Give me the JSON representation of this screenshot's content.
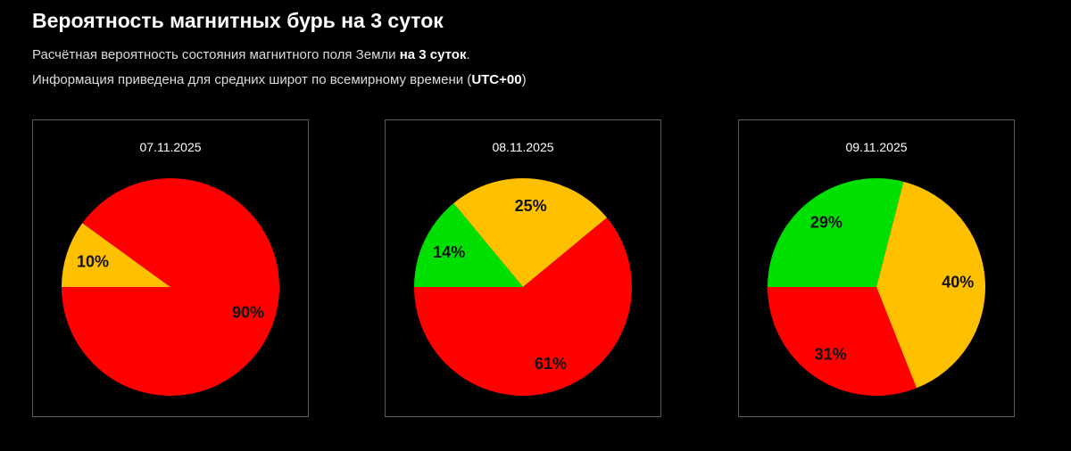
{
  "header": {
    "title": "Вероятность магнитных бурь на 3 суток",
    "line1_text": "Расчётная вероятность состояния магнитного поля Земли ",
    "line1_bold": "на 3 суток",
    "line1_end": ".",
    "line2_text": "Информация приведена для средних широт по всемирному времени (",
    "line2_bold": "UTC+00",
    "line2_end": ")"
  },
  "colors": {
    "background": "#000000",
    "storm": "#ff0000",
    "unsettled": "#ffc000",
    "quiet": "#00e000"
  },
  "chart_data": [
    {
      "type": "pie",
      "title": "07.11.2025",
      "slices": [
        {
          "label": "10%",
          "value": 10,
          "color": "#ffc000"
        },
        {
          "label": "90%",
          "value": 90,
          "color": "#ff0000"
        }
      ],
      "start_angle_deg": 180
    },
    {
      "type": "pie",
      "title": "08.11.2025",
      "slices": [
        {
          "label": "14%",
          "value": 14,
          "color": "#00e000"
        },
        {
          "label": "25%",
          "value": 25,
          "color": "#ffc000"
        },
        {
          "label": "61%",
          "value": 61,
          "color": "#ff0000"
        }
      ],
      "start_angle_deg": 180
    },
    {
      "type": "pie",
      "title": "09.11.2025",
      "slices": [
        {
          "label": "29%",
          "value": 29,
          "color": "#00e000"
        },
        {
          "label": "40%",
          "value": 40,
          "color": "#ffc000"
        },
        {
          "label": "31%",
          "value": 31,
          "color": "#ff0000"
        }
      ],
      "start_angle_deg": 180
    }
  ]
}
